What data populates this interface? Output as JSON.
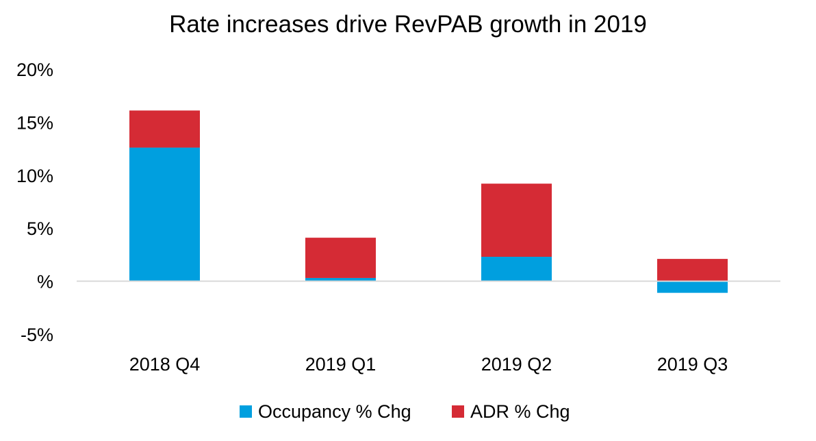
{
  "chart_data": {
    "type": "bar",
    "stacked": true,
    "title": "Rate increases drive RevPAB growth in 2019",
    "xlabel": "",
    "ylabel": "",
    "categories": [
      "2018 Q4",
      "2019 Q1",
      "2019 Q2",
      "2019 Q3"
    ],
    "series": [
      {
        "name": "Occupancy % Chg",
        "color": "#009FDF",
        "values": [
          12.6,
          0.3,
          2.3,
          -1.1
        ]
      },
      {
        "name": "ADR % Chg",
        "color": "#D52B35",
        "values": [
          3.5,
          3.8,
          6.9,
          2.1
        ]
      }
    ],
    "ylim": [
      -5,
      20
    ],
    "yticks": [
      20,
      15,
      10,
      5,
      0,
      -5
    ],
    "ytick_labels": [
      "20%",
      "15%",
      "10%",
      "5%",
      "%",
      "-5%"
    ],
    "grid": false,
    "legend_position": "bottom-center",
    "zero_line_color": "#D9D9D9"
  }
}
